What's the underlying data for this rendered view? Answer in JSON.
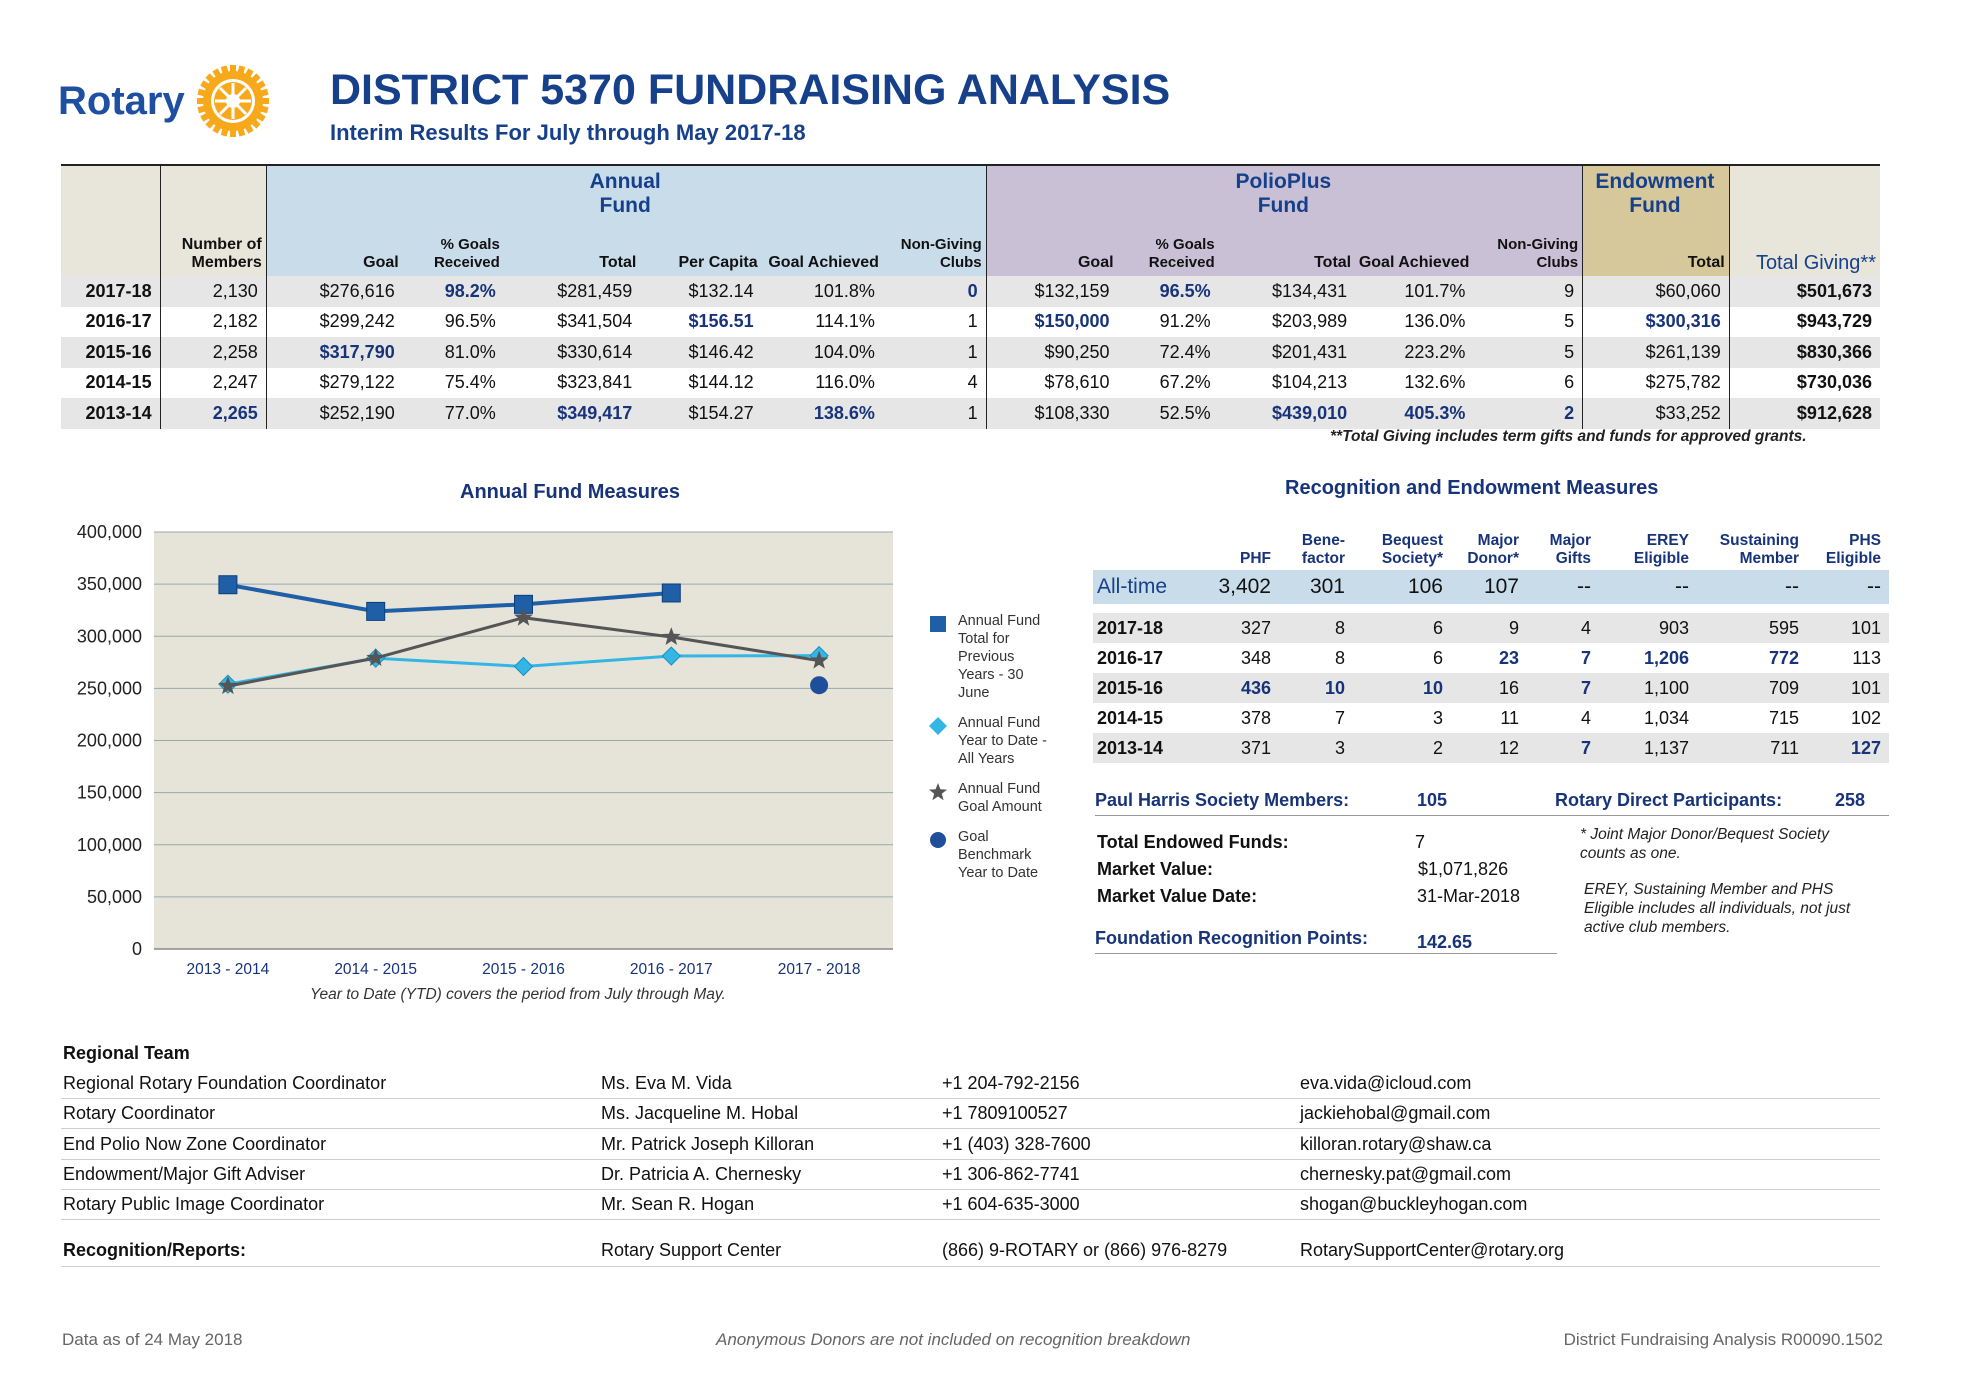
{
  "header": {
    "logo_text": "Rotary",
    "title": "DISTRICT 5370 FUNDRAISING ANALYSIS",
    "subtitle": "Interim Results For July through May 2017-18"
  },
  "main_table": {
    "groups": {
      "annual": "Annual Fund",
      "polio": "PolioPlus Fund",
      "endowment": "Endowment Fund"
    },
    "columns": [
      "Number of Members",
      "Goal",
      "% Goals Received",
      "Total",
      "Per Capita",
      "Goal Achieved",
      "Non-Giving Clubs",
      "Goal",
      "% Goals Received",
      "Total",
      "Goal Achieved",
      "Non-Giving Clubs",
      "Total",
      "Total Giving**"
    ],
    "rows": [
      {
        "year": "2017-18",
        "cells": [
          "2,130",
          "$276,616",
          "98.2%",
          "$281,459",
          "$132.14",
          "101.8%",
          "0",
          "$132,159",
          "96.5%",
          "$134,431",
          "101.7%",
          "9",
          "$60,060",
          "$501,673"
        ],
        "hl": [
          2,
          6,
          8
        ]
      },
      {
        "year": "2016-17",
        "cells": [
          "2,182",
          "$299,242",
          "96.5%",
          "$341,504",
          "$156.51",
          "114.1%",
          "1",
          "$150,000",
          "91.2%",
          "$203,989",
          "136.0%",
          "5",
          "$300,316",
          "$943,729"
        ],
        "hl": [
          4,
          7,
          12
        ]
      },
      {
        "year": "2015-16",
        "cells": [
          "2,258",
          "$317,790",
          "81.0%",
          "$330,614",
          "$146.42",
          "104.0%",
          "1",
          "$90,250",
          "72.4%",
          "$201,431",
          "223.2%",
          "5",
          "$261,139",
          "$830,366"
        ],
        "hl": [
          1
        ]
      },
      {
        "year": "2014-15",
        "cells": [
          "2,247",
          "$279,122",
          "75.4%",
          "$323,841",
          "$144.12",
          "116.0%",
          "4",
          "$78,610",
          "67.2%",
          "$104,213",
          "132.6%",
          "6",
          "$275,782",
          "$730,036"
        ],
        "hl": []
      },
      {
        "year": "2013-14",
        "cells": [
          "2,265",
          "$252,190",
          "77.0%",
          "$349,417",
          "$154.27",
          "138.6%",
          "1",
          "$108,330",
          "52.5%",
          "$439,010",
          "405.3%",
          "2",
          "$33,252",
          "$912,628"
        ],
        "hl": [
          0,
          3,
          5,
          9,
          10,
          11
        ]
      }
    ],
    "footnote": "**Total Giving includes term gifts and funds for approved grants."
  },
  "chart_data": {
    "type": "line",
    "title": "Annual Fund Measures",
    "categories": [
      "2013 - 2014",
      "2014 - 2015",
      "2015 - 2016",
      "2016 - 2017",
      "2017 - 2018"
    ],
    "ylim": [
      0,
      400000
    ],
    "yticks": [
      0,
      50000,
      100000,
      150000,
      200000,
      250000,
      300000,
      350000,
      400000
    ],
    "yticklabels": [
      "0",
      "50,000",
      "100,000",
      "150,000",
      "200,000",
      "250,000",
      "300,000",
      "350,000",
      "400,000"
    ],
    "series": [
      {
        "name": "Annual Fund Total for Previous Years - 30 June",
        "marker": "square",
        "color": "#1f5fa8",
        "values": [
          349417,
          323841,
          330614,
          341504,
          null
        ]
      },
      {
        "name": "Annual Fund Year to Date - All Years",
        "marker": "diamond",
        "color": "#33b5e5",
        "values": [
          254000,
          279000,
          271000,
          281000,
          281459
        ]
      },
      {
        "name": "Annual Fund Goal Amount",
        "marker": "star",
        "color": "#555555",
        "values": [
          252190,
          279122,
          317790,
          299242,
          276616
        ]
      },
      {
        "name": "Goal Benchmark Year to Date",
        "marker": "circle",
        "color": "#1f4f9a",
        "values": [
          null,
          null,
          null,
          null,
          253000
        ]
      }
    ],
    "caption": "Year to Date (YTD) covers the period from July through May.",
    "legend_position": "right",
    "grid": true
  },
  "recognition": {
    "title": "Recognition and Endowment Measures",
    "columns": [
      "PHF",
      "Bene- factor",
      "Bequest Society*",
      "Major Donor*",
      "Major Gifts",
      "EREY Eligible",
      "Sustaining Member",
      "PHS Eligible"
    ],
    "alltime": {
      "label": "All-time",
      "cells": [
        "3,402",
        "301",
        "106",
        "107",
        "--",
        "--",
        "--",
        "--"
      ]
    },
    "rows": [
      {
        "year": "2017-18",
        "cells": [
          "327",
          "8",
          "6",
          "9",
          "4",
          "903",
          "595",
          "101"
        ],
        "hl": []
      },
      {
        "year": "2016-17",
        "cells": [
          "348",
          "8",
          "6",
          "23",
          "7",
          "1,206",
          "772",
          "113"
        ],
        "hl": [
          3,
          4,
          5,
          6
        ]
      },
      {
        "year": "2015-16",
        "cells": [
          "436",
          "10",
          "10",
          "16",
          "7",
          "1,100",
          "709",
          "101"
        ],
        "hl": [
          0,
          1,
          2,
          4
        ]
      },
      {
        "year": "2014-15",
        "cells": [
          "378",
          "7",
          "3",
          "11",
          "4",
          "1,034",
          "715",
          "102"
        ],
        "hl": []
      },
      {
        "year": "2013-14",
        "cells": [
          "371",
          "3",
          "2",
          "12",
          "7",
          "1,137",
          "711",
          "127"
        ],
        "hl": [
          4,
          7
        ]
      }
    ],
    "phs_label": "Paul Harris Society Members:",
    "phs_value": "105",
    "rdp_label": "Rotary Direct Participants:",
    "rdp_value": "258",
    "endowed_label": "Total Endowed Funds:",
    "endowed_value": "7",
    "market_label": "Market Value:",
    "market_value": "$1,071,826",
    "date_label": "Market Value Date:",
    "date_value": "31-Mar-2018",
    "frp_label": "Foundation Recognition Points:",
    "frp_value": "142.65",
    "note1": "* Joint Major Donor/Bequest Society counts as one.",
    "note2": "EREY, Sustaining Member and PHS Eligible includes all individuals, not just active club members."
  },
  "team": {
    "heading": "Regional Team",
    "rows": [
      [
        "Regional Rotary Foundation Coordinator",
        "Ms. Eva M. Vida",
        "+1 204-792-2156",
        "eva.vida@icloud.com"
      ],
      [
        "Rotary Coordinator",
        "Ms. Jacqueline M. Hobal",
        "+1 7809100527",
        "jackiehobal@gmail.com"
      ],
      [
        "End Polio Now Zone Coordinator",
        "Mr. Patrick Joseph Killoran",
        "+1 (403) 328-7600",
        "killoran.rotary@shaw.ca"
      ],
      [
        "Endowment/Major Gift Adviser",
        "Dr. Patricia A. Chernesky",
        "+1 306-862-7741",
        "chernesky.pat@gmail.com"
      ],
      [
        "Rotary Public Image Coordinator",
        "Mr. Sean R. Hogan",
        "+1 604-635-3000",
        "shogan@buckleyhogan.com"
      ]
    ],
    "recognition": [
      "Recognition/Reports:",
      "Rotary Support Center",
      "(866) 9-ROTARY or (866) 976-8279",
      "RotarySupportCenter@rotary.org"
    ]
  },
  "footer": {
    "left": "Data as of 24 May 2018",
    "center": "Anonymous Donors are not included on recognition breakdown",
    "right": "District Fundraising Analysis R00090.1502"
  }
}
